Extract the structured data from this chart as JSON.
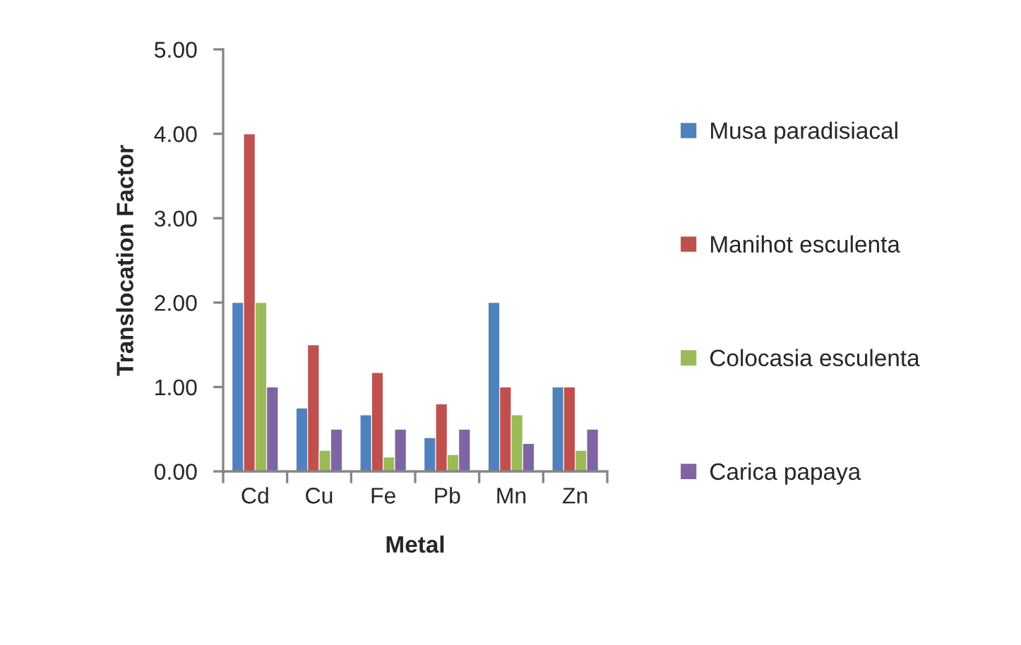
{
  "chart_data": {
    "type": "bar",
    "xlabel": "Metal",
    "ylabel": "Translocation Factor",
    "categories": [
      "Cd",
      "Cu",
      "Fe",
      "Pb",
      "Mn",
      "Zn"
    ],
    "series": [
      {
        "name": "Musa paradisiacal",
        "color": "#4f81bd",
        "values": [
          2.0,
          0.75,
          0.67,
          0.4,
          2.0,
          1.0
        ]
      },
      {
        "name": "Manihot esculenta",
        "color": "#c0504d",
        "values": [
          4.0,
          1.5,
          1.17,
          0.8,
          1.0,
          1.0
        ]
      },
      {
        "name": "Colocasia esculenta",
        "color": "#9bbb59",
        "values": [
          2.0,
          0.25,
          0.17,
          0.2,
          0.67,
          0.25
        ]
      },
      {
        "name": "Carica papaya",
        "color": "#8064a2",
        "values": [
          1.0,
          0.5,
          0.5,
          0.5,
          0.33,
          0.5
        ]
      }
    ],
    "ylim": [
      0,
      5
    ],
    "yticks": [
      {
        "value": 0,
        "label": "0.00"
      },
      {
        "value": 1,
        "label": "1.00"
      },
      {
        "value": 2,
        "label": "2.00"
      },
      {
        "value": 3,
        "label": "3.00"
      },
      {
        "value": 4,
        "label": "4.00"
      },
      {
        "value": 5,
        "label": "5.00"
      }
    ],
    "grid": false,
    "legend": "right"
  }
}
